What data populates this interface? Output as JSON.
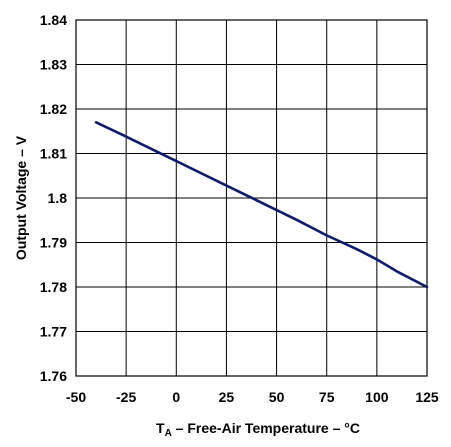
{
  "chart_data": {
    "type": "line",
    "title": "",
    "xlabel": {
      "sym": "T",
      "sub": "A",
      "rest": " – Free-Air Temperature – °C"
    },
    "ylabel": "Output Voltage – V",
    "xlim": [
      -50,
      125
    ],
    "ylim": [
      1.76,
      1.84
    ],
    "xticks": [
      -50,
      -25,
      0,
      25,
      50,
      75,
      100,
      125
    ],
    "xtick_labels": [
      "-50",
      "-25",
      "0",
      "25",
      "50",
      "75",
      "100",
      "125"
    ],
    "yticks": [
      1.76,
      1.77,
      1.78,
      1.79,
      1.8,
      1.81,
      1.82,
      1.83,
      1.84
    ],
    "ytick_labels": [
      "1.76",
      "1.77",
      "1.78",
      "1.79",
      "1.8",
      "1.81",
      "1.82",
      "1.83",
      "1.84"
    ],
    "grid": true,
    "line_color": "#101a6b",
    "series": [
      {
        "x": [
          -40,
          -25,
          -10,
          0,
          10,
          25,
          35,
          50,
          60,
          75,
          90,
          100,
          110,
          125
        ],
        "values": [
          1.817,
          1.8138,
          1.8105,
          1.8083,
          1.8061,
          1.8028,
          1.8006,
          1.7973,
          1.7951,
          1.7916,
          1.7885,
          1.7862,
          1.7835,
          1.78
        ]
      }
    ]
  }
}
